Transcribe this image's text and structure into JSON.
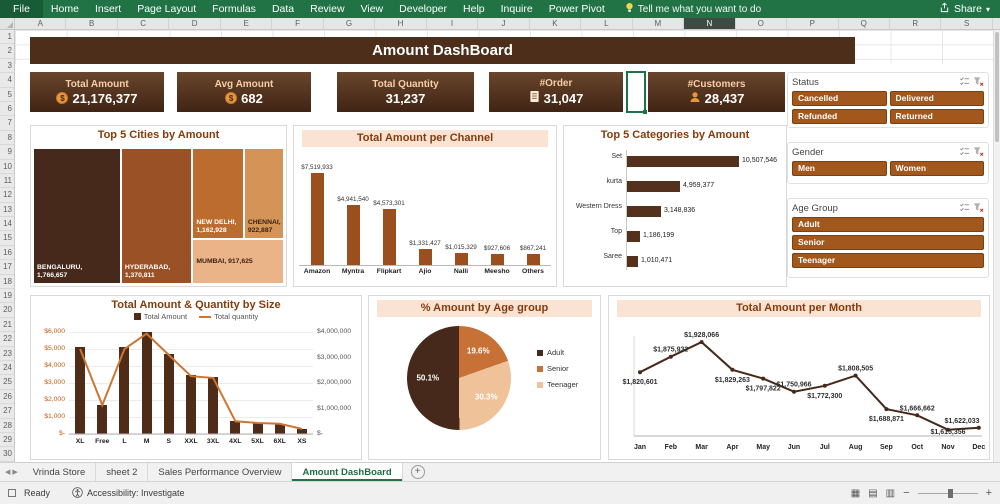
{
  "ribbon": {
    "file": "File",
    "tabs": [
      "Home",
      "Insert",
      "Page Layout",
      "Formulas",
      "Data",
      "Review",
      "View",
      "Developer",
      "Help",
      "Inquire",
      "Power Pivot"
    ],
    "tell_me": "Tell me what you want to do",
    "share": "Share"
  },
  "grid": {
    "columns": [
      "A",
      "B",
      "C",
      "D",
      "E",
      "F",
      "G",
      "H",
      "I",
      "J",
      "K",
      "L",
      "M",
      "N",
      "O",
      "P",
      "Q",
      "R",
      "S"
    ],
    "selected_column": "N",
    "row_count": 30
  },
  "dashboard": {
    "title": "Amount DashBoard",
    "kpis": [
      {
        "label": "Total Amount",
        "value": "21,176,377",
        "icon": "coin"
      },
      {
        "label": "Avg Amount",
        "value": "682",
        "icon": "coin"
      },
      {
        "label": "Total Quantity",
        "value": "31,237",
        "icon": "none"
      },
      {
        "label": "#Order",
        "value": "31,047",
        "icon": "order"
      },
      {
        "label": "#Customers",
        "value": "28,437",
        "icon": "person"
      }
    ],
    "slicers": [
      {
        "title": "Status",
        "columns": 2,
        "buttons": [
          "Cancelled",
          "Delivered",
          "Refunded",
          "Returned"
        ]
      },
      {
        "title": "Gender",
        "columns": 2,
        "buttons": [
          "Men",
          "Women"
        ]
      },
      {
        "title": "Age Group",
        "columns": 1,
        "buttons": [
          "Adult",
          "Senior",
          "Teenager"
        ]
      }
    ]
  },
  "chart_data": [
    {
      "type": "treemap",
      "title": "Top 5 Cities by Amount",
      "points": [
        {
          "label": "BENGALURU",
          "value": 1766657,
          "display": [
            "BENGALURU,",
            "1,766,657"
          ]
        },
        {
          "label": "HYDERABAD",
          "value": 1370811,
          "display": [
            "HYDERABAD,",
            "1,370,811"
          ]
        },
        {
          "label": "NEW DELHI",
          "value": 1162928,
          "display": [
            "NEW DELHI,",
            "1,162,928"
          ]
        },
        {
          "label": "CHENNAI",
          "value": 922887,
          "display": [
            "CHENNAI,",
            "922,887"
          ]
        },
        {
          "label": "MUMBAI",
          "value": 917625,
          "display": [
            "MUMBAI,  917,625"
          ]
        }
      ],
      "layout": {
        "rects": [
          [
            0,
            0,
            35,
            100
          ],
          [
            35,
            0,
            28.5,
            100
          ],
          [
            63.5,
            0,
            20.5,
            67
          ],
          [
            84,
            0,
            16,
            67
          ],
          [
            63.5,
            67,
            36.5,
            33
          ]
        ],
        "colors": [
          "#46291a",
          "#9b5126",
          "#bc6c2e",
          "#d49357",
          "#eab388"
        ],
        "text_colors": [
          "#ffffff",
          "#ffffff",
          "#ffffff",
          "#3d2212",
          "#3d2212"
        ],
        "label_pos": [
          "bottom",
          "bottom",
          "bottom",
          "bottom",
          "middle"
        ]
      }
    },
    {
      "type": "bar",
      "title": "Total Amount per Channel",
      "categories": [
        "Amazon",
        "Myntra",
        "Flipkart",
        "Ajio",
        "Nalli",
        "Meesho",
        "Others"
      ],
      "values": [
        7519933,
        4941540,
        4573301,
        1331427,
        1015329,
        927606,
        867241
      ],
      "labels": [
        "$7,519,933",
        "$4,941,540",
        "$4,573,301",
        "$1,331,427",
        "$1,015,329",
        "$927,606",
        "$867,241"
      ],
      "bar_color": "#9b4f1f"
    },
    {
      "type": "bar-horizontal",
      "title": "Top 5 Categories by Amount",
      "categories": [
        "Set",
        "kurta",
        "Western Dress",
        "Top",
        "Saree"
      ],
      "values": [
        10507546,
        4959377,
        3148836,
        1186199,
        1010471
      ],
      "labels": [
        "10,507,546",
        "4,959,377",
        "3,148,836",
        "1,186,199",
        "1,010,471"
      ],
      "bar_color": "#53311c"
    },
    {
      "type": "combo",
      "title": "Total Amount & Quantity by Size",
      "categories": [
        "XL",
        "Free",
        "L",
        "M",
        "S",
        "XXL",
        "3XL",
        "4XL",
        "5XL",
        "6XL",
        "XS"
      ],
      "series": [
        {
          "name": "Total Amount",
          "chart": "bar",
          "axis": "right",
          "color": "#4f2c18",
          "values": [
            3400000,
            1150000,
            3400000,
            4000000,
            3150000,
            2300000,
            2250000,
            500000,
            450000,
            400000,
            200000
          ]
        },
        {
          "name": "Total quantity",
          "chart": "line",
          "axis": "left",
          "color": "#cd7633",
          "values": [
            5000,
            1700,
            5000,
            5900,
            4650,
            3400,
            3300,
            750,
            650,
            600,
            300
          ]
        }
      ],
      "left_axis_ticks": [
        "$6,000",
        "$5,000",
        "$4,000",
        "$3,000",
        "$2,000",
        "$1,000",
        "$-"
      ],
      "right_axis_ticks": [
        "$4,000,000",
        "$3,000,000",
        "$2,000,000",
        "$1,000,000",
        "$-"
      ],
      "left_max": 6000,
      "right_max": 4000000
    },
    {
      "type": "pie",
      "title": "% Amount by Age group",
      "slices_draw_order": [
        {
          "label": "Senior",
          "pct": 19.6,
          "display": "19.6%",
          "color": "#c87137"
        },
        {
          "label": "Teenager",
          "pct": 30.3,
          "display": "30.3%",
          "color": "#f0c29a"
        },
        {
          "label": "Adult",
          "pct": 50.1,
          "display": "50.1%",
          "color": "#46291a"
        }
      ],
      "legend": [
        "Adult",
        "Senior",
        "Teenager"
      ],
      "legend_colors": [
        "#46291a",
        "#c87137",
        "#f0c29a"
      ]
    },
    {
      "type": "line",
      "title": "Total Amount per Month",
      "categories": [
        "Jan",
        "Feb",
        "Mar",
        "Apr",
        "May",
        "Jun",
        "Jul",
        "Aug",
        "Sep",
        "Oct",
        "Nov",
        "Dec"
      ],
      "values": [
        1820601,
        1875932,
        1928066,
        1829263,
        1797822,
        1750966,
        1772300,
        1808505,
        1688871,
        1666662,
        1615356,
        1622033
      ],
      "labels": [
        "$1,820,601",
        "$1,875,932",
        "$1,928,066",
        "$1,829,263",
        "$1,797,822",
        "$1,750,966",
        "$1,772,300",
        "$1,808,505",
        "$1,688,871",
        "$1,666,662",
        "$1,615,356",
        "$1,622,033"
      ],
      "label_side": [
        "below",
        "above",
        "above",
        "below",
        "below",
        "above",
        "below",
        "above",
        "below",
        "above",
        "below",
        "above"
      ],
      "line_color": "#46291a",
      "ymin": 1600000,
      "ymax": 1950000
    }
  ],
  "sheet_tabs": {
    "tabs": [
      "Vrinda Store",
      "sheet 2",
      "Sales Performance Overview",
      "Amount DashBoard"
    ],
    "active": "Amount DashBoard"
  },
  "status_bar": {
    "ready": "Ready",
    "accessibility": "Accessibility: Investigate"
  }
}
